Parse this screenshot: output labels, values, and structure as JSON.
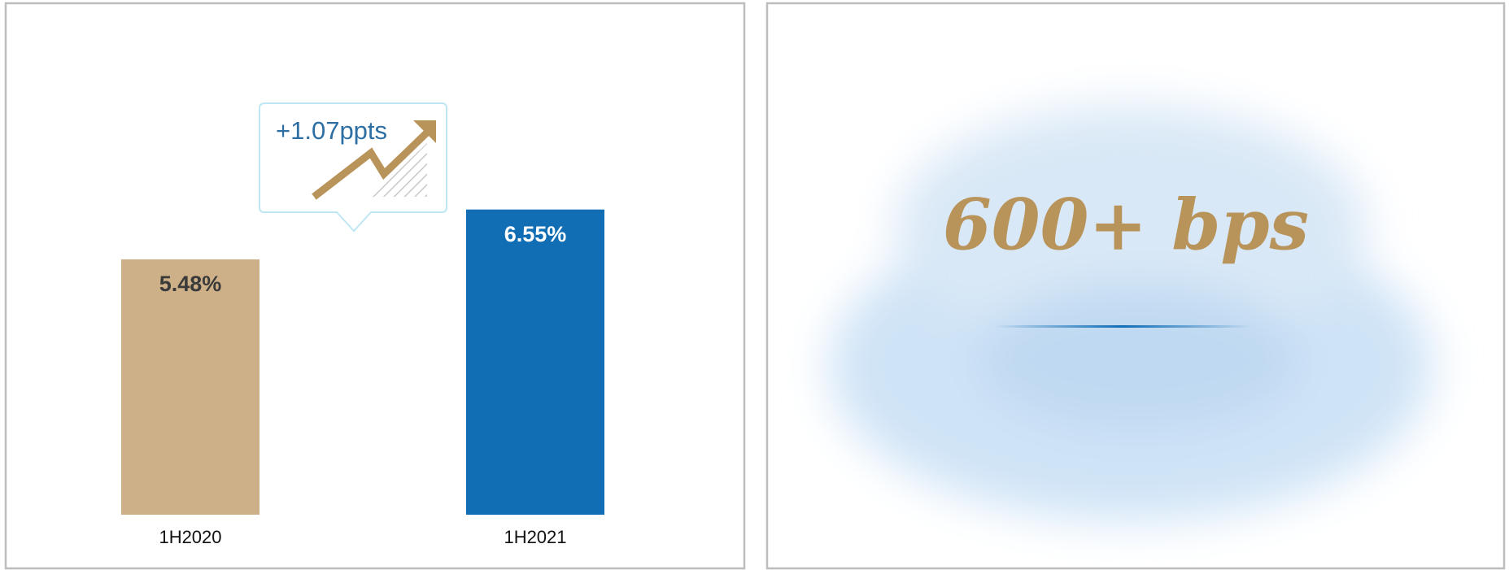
{
  "chart_data": {
    "type": "bar",
    "categories": [
      "1H2020",
      "1H2021"
    ],
    "values": [
      5.48,
      6.55
    ],
    "value_labels": [
      "5.48%",
      "6.55%"
    ],
    "colors": [
      "#cdb087",
      "#116eb5"
    ],
    "label_colors": [
      "#3a3a3a",
      "#ffffff"
    ],
    "annotation": "+1.07ppts"
  },
  "highlight": {
    "text": "600+ bps"
  }
}
